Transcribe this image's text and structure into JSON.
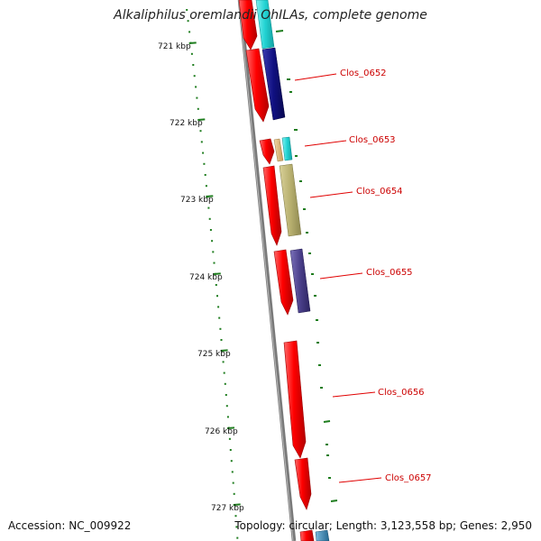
{
  "title": "Alkaliphilus oremlandii OhILAs, complete genome",
  "accession": "Accession: NC_009922",
  "summary": "Topology: circular; Length: 3,123,558 bp; Genes: 2,950",
  "kbp_labels": [
    "721 kbp",
    "722 kbp",
    "723 kbp",
    "724 kbp",
    "725 kbp",
    "726 kbp",
    "727 kbp"
  ],
  "gene_labels": [
    "Clos_0652",
    "Clos_0653",
    "Clos_0654",
    "Clos_0655",
    "Clos_0656",
    "Clos_0657"
  ],
  "colors": {
    "backbone": "#7a7a7a",
    "tick": "#1e7d1e",
    "cds": "#ff0000",
    "label": "#cc0000",
    "cyan": "#22d3d3",
    "navy": "#101080",
    "khaki": "#b8b070",
    "slate": "#4a3f8a",
    "tan": "#d8b070",
    "steel": "#3a84b0"
  }
}
